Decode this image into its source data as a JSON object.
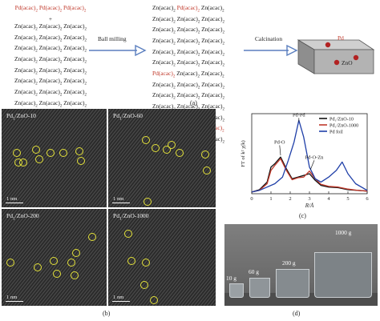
{
  "scheme": {
    "left_lines": [
      [
        {
          "t": "Pd(acac)",
          "r": true
        },
        {
          "t": "2",
          "sub": true,
          "r": true
        },
        {
          "t": " Pd(acac)",
          "r": true
        },
        {
          "t": "2",
          "sub": true,
          "r": true
        },
        {
          "t": " Pd(acac)",
          "r": true
        },
        {
          "t": "2",
          "sub": true,
          "r": true
        }
      ],
      [
        {
          "t": "+"
        }
      ],
      [
        {
          "t": "Zn(acac)"
        },
        {
          "t": "2",
          "sub": true
        },
        {
          "t": " Zn(acac)"
        },
        {
          "t": "2",
          "sub": true
        },
        {
          "t": " Zn(acac)"
        },
        {
          "t": "2",
          "sub": true
        }
      ],
      [
        {
          "t": "Zn(acac)"
        },
        {
          "t": "2",
          "sub": true
        },
        {
          "t": " Zn(acac)"
        },
        {
          "t": "2",
          "sub": true
        },
        {
          "t": " Zn(acac)"
        },
        {
          "t": "2",
          "sub": true
        }
      ],
      [
        {
          "t": "Zn(acac)"
        },
        {
          "t": "2",
          "sub": true
        },
        {
          "t": " Zn(acac)"
        },
        {
          "t": "2",
          "sub": true
        },
        {
          "t": " Zn(acac)"
        },
        {
          "t": "2",
          "sub": true
        }
      ],
      [
        {
          "t": "Zn(acac)"
        },
        {
          "t": "2",
          "sub": true
        },
        {
          "t": " Zn(acac)"
        },
        {
          "t": "2",
          "sub": true
        },
        {
          "t": " Zn(acac)"
        },
        {
          "t": "2",
          "sub": true
        }
      ],
      [
        {
          "t": "Zn(acac)"
        },
        {
          "t": "2",
          "sub": true
        },
        {
          "t": " Zn(acac)"
        },
        {
          "t": "2",
          "sub": true
        },
        {
          "t": " Zn(acac)"
        },
        {
          "t": "2",
          "sub": true
        }
      ],
      [
        {
          "t": "Zn(acac)"
        },
        {
          "t": "2",
          "sub": true
        },
        {
          "t": " Zn(acac)"
        },
        {
          "t": "2",
          "sub": true
        },
        {
          "t": " Zn(acac)"
        },
        {
          "t": "2",
          "sub": true
        }
      ],
      [
        {
          "t": "Zn(acac)"
        },
        {
          "t": "2",
          "sub": true
        },
        {
          "t": " Zn(acac)"
        },
        {
          "t": "2",
          "sub": true
        },
        {
          "t": " Zn(acac)"
        },
        {
          "t": "2",
          "sub": true
        }
      ],
      [
        {
          "t": "Zn(acac)"
        },
        {
          "t": "2",
          "sub": true
        },
        {
          "t": " Zn(acac)"
        },
        {
          "t": "2",
          "sub": true
        },
        {
          "t": " Zn(acac)"
        },
        {
          "t": "2",
          "sub": true
        }
      ],
      [
        {
          "t": "Zn(acac)"
        },
        {
          "t": "2",
          "sub": true
        },
        {
          "t": " Zn(acac)"
        },
        {
          "t": "2",
          "sub": true
        },
        {
          "t": " Zn(acac)"
        },
        {
          "t": "2",
          "sub": true
        }
      ],
      [
        {
          "t": "Zn(acac)"
        },
        {
          "t": "2",
          "sub": true
        },
        {
          "t": " Zn(acac)"
        },
        {
          "t": "2",
          "sub": true
        },
        {
          "t": " Zn(acac)"
        },
        {
          "t": "2",
          "sub": true
        }
      ],
      [
        {
          "t": "Zn(acac)"
        },
        {
          "t": "2",
          "sub": true
        },
        {
          "t": " Zn(acac)"
        },
        {
          "t": "2",
          "sub": true
        },
        {
          "t": " Zn(acac)"
        },
        {
          "t": "2",
          "sub": true
        }
      ]
    ],
    "middle_lines": [
      [
        {
          "t": "Zn(acac)"
        },
        {
          "t": "2",
          "sub": true
        },
        {
          "t": " Pd(acac)",
          "r": true
        },
        {
          "t": "2",
          "sub": true,
          "r": true
        },
        {
          "t": " Zn(acac)"
        },
        {
          "t": "2",
          "sub": true
        }
      ],
      [
        {
          "t": "Zn(acac)"
        },
        {
          "t": "2",
          "sub": true
        },
        {
          "t": " Zn(acac)"
        },
        {
          "t": "2",
          "sub": true
        },
        {
          "t": " Zn(acac)"
        },
        {
          "t": "2",
          "sub": true
        }
      ],
      [
        {
          "t": "Zn(acac)"
        },
        {
          "t": "2",
          "sub": true
        },
        {
          "t": " Zn(acac)"
        },
        {
          "t": "2",
          "sub": true
        },
        {
          "t": " Zn(acac)"
        },
        {
          "t": "2",
          "sub": true
        }
      ],
      [
        {
          "t": "Zn(acac)"
        },
        {
          "t": "2",
          "sub": true
        },
        {
          "t": " Zn(acac)"
        },
        {
          "t": "2",
          "sub": true
        },
        {
          "t": " Zn(acac)"
        },
        {
          "t": "2",
          "sub": true
        }
      ],
      [
        {
          "t": "Zn(acac)"
        },
        {
          "t": "2",
          "sub": true
        },
        {
          "t": " Zn(acac)"
        },
        {
          "t": "2",
          "sub": true
        },
        {
          "t": " Zn(acac)"
        },
        {
          "t": "2",
          "sub": true
        }
      ],
      [
        {
          "t": "Zn(acac)"
        },
        {
          "t": "2",
          "sub": true
        },
        {
          "t": " Zn(acac)"
        },
        {
          "t": "2",
          "sub": true
        },
        {
          "t": " Zn(acac)"
        },
        {
          "t": "2",
          "sub": true
        }
      ],
      [
        {
          "t": "Pd(acac)",
          "r": true
        },
        {
          "t": "2",
          "sub": true,
          "r": true
        },
        {
          "t": " Zn(acac)"
        },
        {
          "t": "2",
          "sub": true
        },
        {
          "t": " Zn(acac)"
        },
        {
          "t": "2",
          "sub": true
        }
      ],
      [
        {
          "t": "Zn(acac)"
        },
        {
          "t": "2",
          "sub": true
        },
        {
          "t": " Zn(acac)"
        },
        {
          "t": "2",
          "sub": true
        },
        {
          "t": " Zn(acac)"
        },
        {
          "t": "2",
          "sub": true
        }
      ],
      [
        {
          "t": "Zn(acac)"
        },
        {
          "t": "2",
          "sub": true
        },
        {
          "t": " Zn(acac)"
        },
        {
          "t": "2",
          "sub": true
        },
        {
          "t": " Zn(acac)"
        },
        {
          "t": "2",
          "sub": true
        }
      ],
      [
        {
          "t": "Zn(acac)"
        },
        {
          "t": "2",
          "sub": true
        },
        {
          "t": " Zn(acac)"
        },
        {
          "t": "2",
          "sub": true
        },
        {
          "t": " Zn(acac)"
        },
        {
          "t": "2",
          "sub": true
        }
      ],
      [
        {
          "t": "Zn(acac)"
        },
        {
          "t": "2",
          "sub": true
        },
        {
          "t": " Zn(acac)"
        },
        {
          "t": "2",
          "sub": true
        },
        {
          "t": " Zn(acac)"
        },
        {
          "t": "2",
          "sub": true
        }
      ],
      [
        {
          "t": "Zn(acac)"
        },
        {
          "t": "2",
          "sub": true
        },
        {
          "t": " Zn(acac)"
        },
        {
          "t": "2",
          "sub": true
        },
        {
          "t": " Pd(acac)",
          "r": true
        },
        {
          "t": "2",
          "sub": true,
          "r": true
        }
      ],
      [
        {
          "t": "Zn(acac)"
        },
        {
          "t": "2",
          "sub": true
        },
        {
          "t": " Zn(acac)"
        },
        {
          "t": "2",
          "sub": true
        },
        {
          "t": " Zn(acac)"
        },
        {
          "t": "2",
          "sub": true
        }
      ]
    ],
    "arrow1_label": "Ball milling",
    "arrow2_label": "Calcination",
    "block_pd_label": "Pd",
    "block_zno_label": "ZnO",
    "caption": "(a)"
  },
  "tem": {
    "panels": [
      {
        "label_main": "Pd",
        "label_sub": "1",
        "label_rest": "/ZnO-10",
        "scale": "1 nm"
      },
      {
        "label_main": "Pd",
        "label_sub": "1",
        "label_rest": "/ZnO-60",
        "scale": "1 nm"
      },
      {
        "label_main": "Pd",
        "label_sub": "1",
        "label_rest": "/ZnO-200",
        "scale": "1 nm"
      },
      {
        "label_main": "Pd",
        "label_sub": "1",
        "label_rest": "/ZnO-1000",
        "scale": "1 nm"
      }
    ],
    "caption": "(b)"
  },
  "chart_data": {
    "type": "line",
    "xlabel": "R/Å",
    "ylabel": "FT of k² χ(k)",
    "xlim": [
      0,
      6
    ],
    "x_ticks": [
      "0",
      "1",
      "2",
      "3",
      "4",
      "5",
      "6"
    ],
    "series": [
      {
        "name": "Pd₁/ZnO-10",
        "color": "#111111",
        "x": [
          0,
          0.4,
          0.8,
          1.0,
          1.2,
          1.5,
          1.8,
          2.1,
          2.4,
          2.7,
          3.0,
          3.3,
          3.6,
          4.0,
          4.5,
          5,
          5.5,
          6
        ],
        "y": [
          0.05,
          0.12,
          0.35,
          0.8,
          0.9,
          1.1,
          0.75,
          0.45,
          0.5,
          0.55,
          0.6,
          0.4,
          0.25,
          0.2,
          0.18,
          0.12,
          0.1,
          0.08
        ]
      },
      {
        "name": "Pd₁/ZnO-1000",
        "color": "#c0392b",
        "x": [
          0,
          0.4,
          0.8,
          1.0,
          1.2,
          1.5,
          1.8,
          2.1,
          2.4,
          2.7,
          3.0,
          3.3,
          3.6,
          4.0,
          4.5,
          5,
          5.5,
          6
        ],
        "y": [
          0.05,
          0.1,
          0.3,
          0.7,
          0.85,
          1.05,
          0.7,
          0.42,
          0.48,
          0.5,
          0.68,
          0.45,
          0.28,
          0.22,
          0.2,
          0.14,
          0.1,
          0.08
        ]
      },
      {
        "name": "Pd foil",
        "color": "#1f3fa8",
        "x": [
          0,
          0.4,
          0.8,
          1.2,
          1.6,
          1.9,
          2.2,
          2.45,
          2.7,
          3.0,
          3.3,
          3.6,
          4.0,
          4.4,
          4.7,
          5.0,
          5.4,
          6
        ],
        "y": [
          0.05,
          0.1,
          0.2,
          0.3,
          0.5,
          1.0,
          1.55,
          2.2,
          1.7,
          0.8,
          0.45,
          0.35,
          0.5,
          0.7,
          0.95,
          0.6,
          0.3,
          0.1
        ]
      }
    ],
    "annotations": [
      "Pd-Pd",
      "Pd-O",
      "Pd-O-Zn"
    ],
    "caption": "(c)"
  },
  "photo": {
    "labels": [
      "10 g",
      "60 g",
      "200 g",
      "1000 g"
    ],
    "caption": "(d)"
  }
}
